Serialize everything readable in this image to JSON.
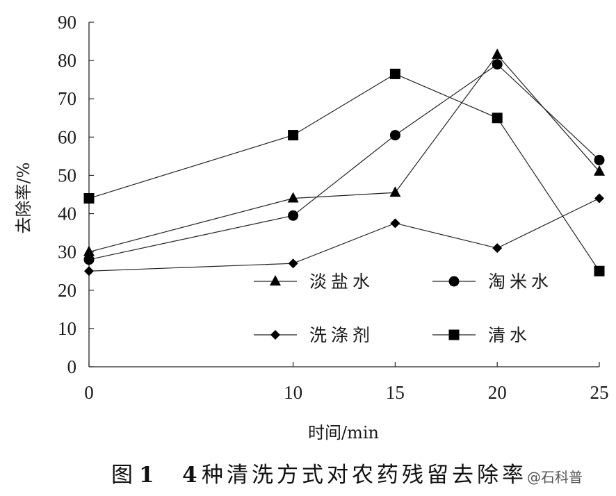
{
  "chart_data": {
    "type": "line",
    "x": [
      0,
      10,
      15,
      20,
      25
    ],
    "xlabel": "时间/min",
    "ylabel": "去除率/%",
    "xlim": [
      0,
      25
    ],
    "ylim": [
      0,
      90
    ],
    "xticks": [
      "0",
      "10",
      "15",
      "20",
      "25"
    ],
    "yticks": [
      "0",
      "10",
      "20",
      "30",
      "40",
      "50",
      "60",
      "70",
      "80",
      "90"
    ],
    "grid": false,
    "legend_position": "inside-bottom",
    "series": [
      {
        "name": "淡盐水",
        "marker": "triangle",
        "values": [
          30,
          44,
          45.5,
          81.5,
          51
        ]
      },
      {
        "name": "淘米水",
        "marker": "circle",
        "values": [
          28,
          39.5,
          60.5,
          79,
          54
        ]
      },
      {
        "name": "洗涤剂",
        "marker": "diamond",
        "values": [
          25,
          27,
          37.5,
          31,
          44
        ]
      },
      {
        "name": "清水",
        "marker": "square",
        "values": [
          44,
          60.5,
          76.5,
          65,
          25
        ]
      }
    ]
  },
  "caption": {
    "prefix": "图",
    "number": "1",
    "title_number": "4",
    "title_text": "种清洗方式对农药残留去除率"
  },
  "watermark": "@石科普"
}
